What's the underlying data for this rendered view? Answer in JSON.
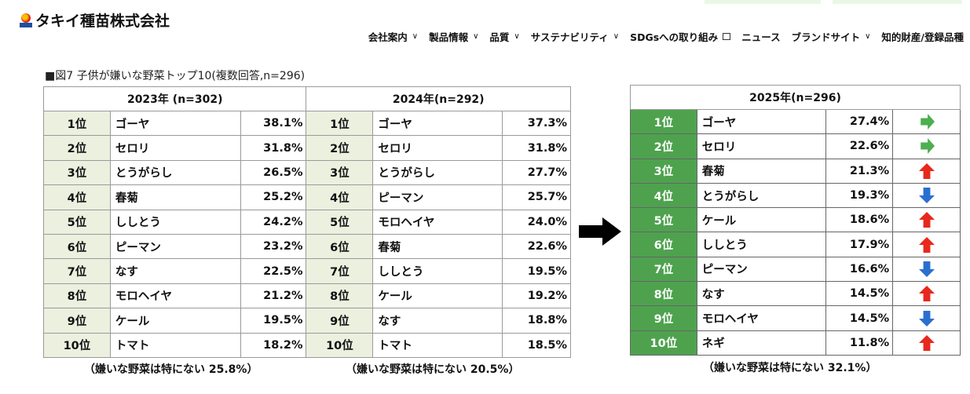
{
  "header": {
    "logo_text": "タキイ種苗株式会社",
    "nav": [
      {
        "label": "会社案内",
        "icon": "chevron-down"
      },
      {
        "label": "製品情報",
        "icon": "chevron-down"
      },
      {
        "label": "品質",
        "icon": "chevron-down"
      },
      {
        "label": "サステナビリティ",
        "icon": "chevron-down"
      },
      {
        "label": "SDGsへの取り組み",
        "icon": "external-window"
      },
      {
        "label": "ニュース",
        "icon": ""
      },
      {
        "label": "ブランドサイト",
        "icon": "chevron-down"
      },
      {
        "label": "知的財産/登録品種",
        "icon": ""
      }
    ]
  },
  "figure_title": "■図7  子供が嫌いな野菜トップ10(複数回答,n=296)",
  "table_2023": {
    "title": "2023年 (n=302)",
    "note": "（嫌いな野菜は特にない 25.8%）",
    "rows": [
      [
        "1位",
        "ゴーヤ",
        "38.1%"
      ],
      [
        "2位",
        "セロリ",
        "31.8%"
      ],
      [
        "3位",
        "とうがらし",
        "26.5%"
      ],
      [
        "4位",
        "春菊",
        "25.2%"
      ],
      [
        "5位",
        "ししとう",
        "24.2%"
      ],
      [
        "6位",
        "ピーマン",
        "23.2%"
      ],
      [
        "7位",
        "なす",
        "22.5%"
      ],
      [
        "8位",
        "モロヘイヤ",
        "21.2%"
      ],
      [
        "9位",
        "ケール",
        "19.5%"
      ],
      [
        "10位",
        "トマト",
        "18.2%"
      ]
    ]
  },
  "table_2024": {
    "title": "2024年(n=292)",
    "note": "（嫌いな野菜は特にない 20.5%）",
    "rows": [
      [
        "1位",
        "ゴーヤ",
        "37.3%"
      ],
      [
        "2位",
        "セロリ",
        "31.8%"
      ],
      [
        "3位",
        "とうがらし",
        "27.7%"
      ],
      [
        "4位",
        "ピーマン",
        "25.7%"
      ],
      [
        "5位",
        "モロヘイヤ",
        "24.0%"
      ],
      [
        "6位",
        "春菊",
        "22.6%"
      ],
      [
        "7位",
        "ししとう",
        "19.5%"
      ],
      [
        "8位",
        "ケール",
        "19.2%"
      ],
      [
        "9位",
        "なす",
        "18.8%"
      ],
      [
        "10位",
        "トマト",
        "18.5%"
      ]
    ]
  },
  "table_2025": {
    "title": "2025年(n=296)",
    "note": "（嫌いな野菜は特にない 32.1%）",
    "rows": [
      [
        "1位",
        "ゴーヤ",
        "27.4%",
        "same"
      ],
      [
        "2位",
        "セロリ",
        "22.6%",
        "same"
      ],
      [
        "3位",
        "春菊",
        "21.3%",
        "up"
      ],
      [
        "4位",
        "とうがらし",
        "19.3%",
        "down"
      ],
      [
        "5位",
        "ケール",
        "18.6%",
        "up"
      ],
      [
        "6位",
        "ししとう",
        "17.9%",
        "up"
      ],
      [
        "7位",
        "ピーマン",
        "16.6%",
        "down"
      ],
      [
        "8位",
        "なす",
        "14.5%",
        "up"
      ],
      [
        "9位",
        "モロヘイヤ",
        "14.5%",
        "down"
      ],
      [
        "10位",
        "ネギ",
        "11.8%",
        "up"
      ]
    ]
  },
  "colors": {
    "same": "#4caf50",
    "up": "#e8281c",
    "down": "#2a6fd0",
    "rank_2025_bg": "#4ea24e",
    "rank_bg": "#ebf0df"
  }
}
